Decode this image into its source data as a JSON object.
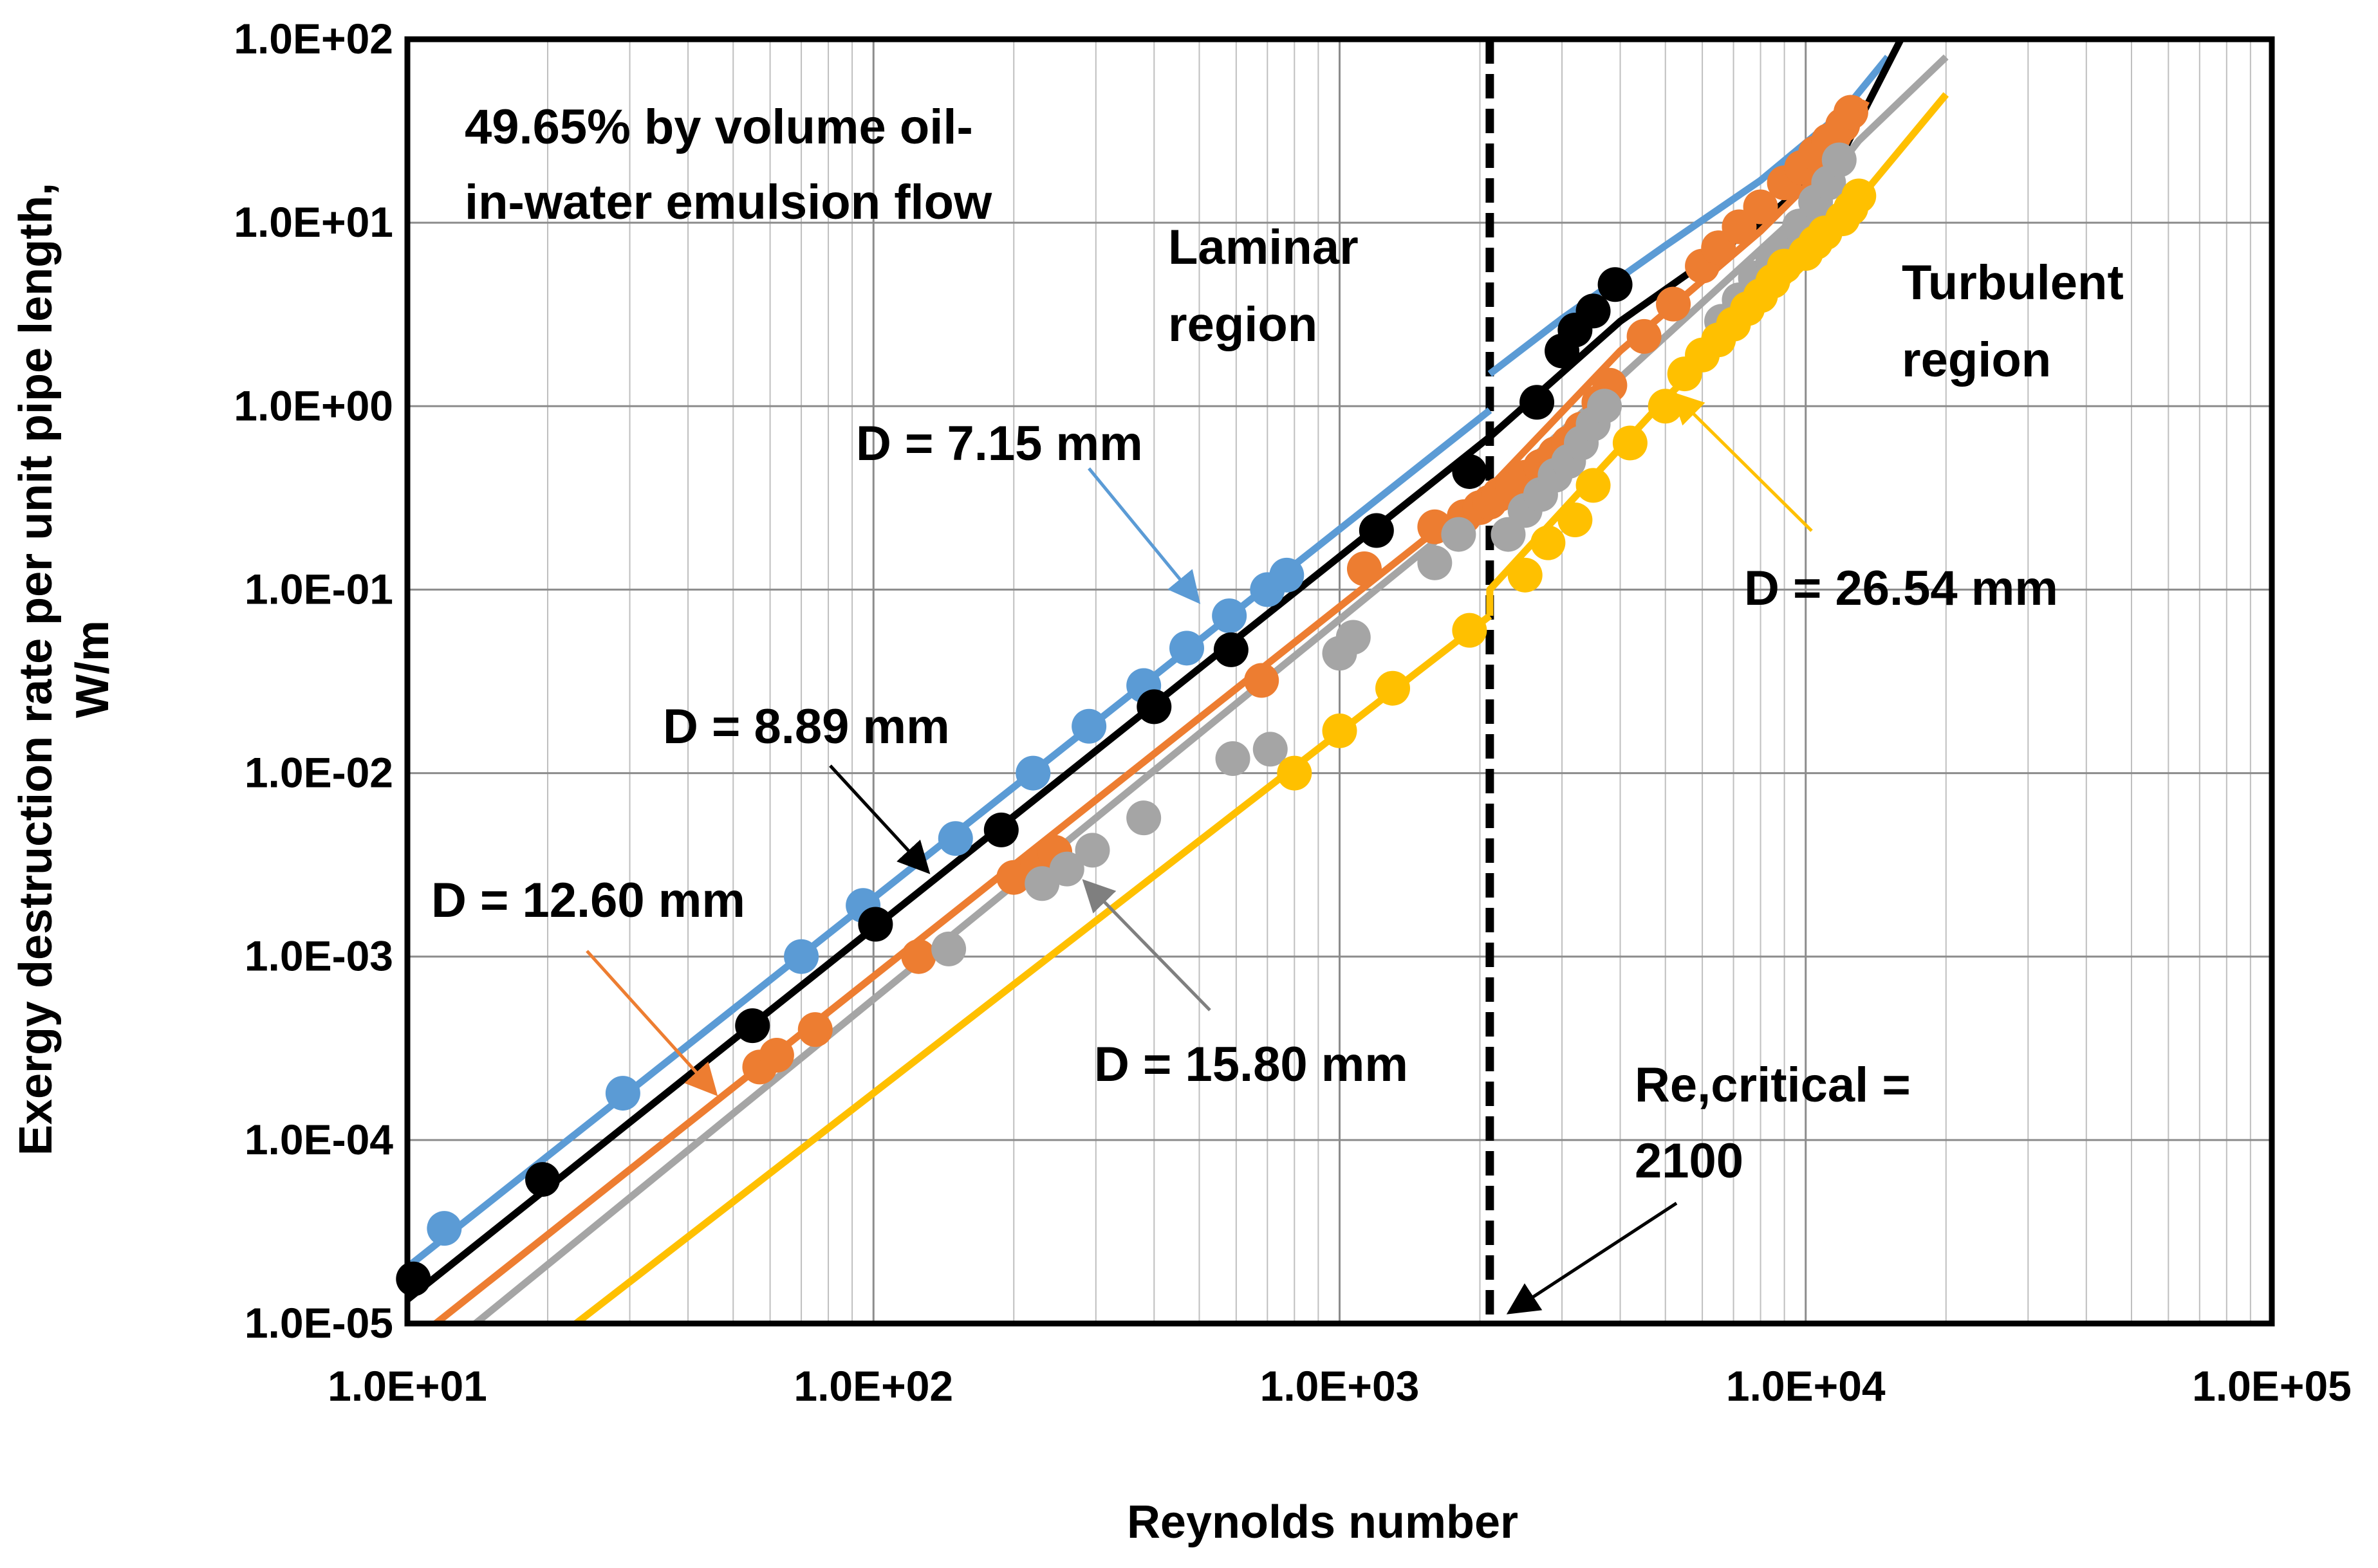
{
  "chart_data": {
    "type": "scatter",
    "xscale": "log",
    "yscale": "log",
    "xlabel": "Reynolds number",
    "ylabel": [
      "Exergy destruction rate per unit pipe length,",
      "W/m"
    ],
    "xlim": [
      10,
      100000
    ],
    "ylim": [
      1e-05,
      100
    ],
    "x_ticks": [
      "1.0E+01",
      "1.0E+02",
      "1.0E+03",
      "1.0E+04",
      "1.0E+05"
    ],
    "y_ticks": [
      "1.0E+02",
      "1.0E+01",
      "1.0E+00",
      "1.0E-01",
      "1.0E-02",
      "1.0E-03",
      "1.0E-04",
      "1.0E-05"
    ],
    "grid": true,
    "critical_reynolds": 2100,
    "annotations": {
      "title_line1": "49.65% by volume oil-",
      "title_line2": "in-water emulsion flow",
      "laminar_line1": "Laminar",
      "laminar_line2": "region",
      "turbulent_line1": "Turbulent",
      "turbulent_line2": "region",
      "critical_line1": "Re,critical =",
      "critical_line2": "2100"
    },
    "series": [
      {
        "name": "D = 7.15 mm",
        "color": "#5B9BD5",
        "line_laminar": [
          [
            10,
            2.03e-05
          ],
          [
            2100,
            0.95
          ]
        ],
        "line_turbulent": [
          [
            2100,
            1.5
          ],
          [
            3000,
            3.0
          ],
          [
            5000,
            7.5
          ],
          [
            8000,
            17
          ],
          [
            12000,
            40
          ],
          [
            15000,
            80
          ]
        ],
        "points_x": [
          12,
          29,
          70,
          95,
          150,
          220,
          290,
          380,
          470,
          580,
          700,
          770
        ],
        "points_y": [
          3.3e-05,
          0.00018,
          0.001,
          0.0019,
          0.0044,
          0.01,
          0.018,
          0.03,
          0.048,
          0.072,
          0.1,
          0.12
        ]
      },
      {
        "name": "D = 8.89 mm",
        "color": "#000000",
        "line_laminar": [
          [
            10,
            1.35e-05
          ],
          [
            2100,
            0.68
          ]
        ],
        "line_turbulent": [
          [
            2100,
            0.68
          ],
          [
            4000,
            2.9
          ],
          [
            8000,
            10
          ],
          [
            12000,
            24
          ],
          [
            16000,
            100
          ]
        ],
        "points_x": [
          10.3,
          19.5,
          55,
          101,
          188,
          400,
          585,
          1200,
          1900,
          2650,
          3000,
          3200,
          3500,
          3900
        ],
        "points_y": [
          1.75e-05,
          6.1e-05,
          0.00042,
          0.0015,
          0.0049,
          0.023,
          0.047,
          0.21,
          0.44,
          1.05,
          2.0,
          2.6,
          3.3,
          4.6
        ]
      },
      {
        "name": "D = 12.60 mm",
        "color": "#ED7D31",
        "line_laminar": [
          [
            11.5,
            1e-05
          ],
          [
            2100,
            0.36
          ]
        ],
        "line_turbulent": [
          [
            2100,
            0.36
          ],
          [
            4000,
            2.0
          ],
          [
            8000,
            9
          ],
          [
            12000,
            25
          ],
          [
            13500,
            46
          ]
        ],
        "points_x": [
          57,
          62,
          75,
          125,
          200,
          225,
          245,
          680,
          1130,
          1600,
          1850,
          2000,
          2100,
          2200,
          2350,
          2500,
          2700,
          2900,
          3100,
          3300,
          3600,
          3800,
          4500,
          5200,
          6000,
          6500,
          7200,
          8000,
          9000,
          9800,
          10500,
          11200,
          12000,
          12500
        ],
        "points_y": [
          0.00025,
          0.00029,
          0.0004,
          0.001,
          0.0027,
          0.0032,
          0.0037,
          0.032,
          0.13,
          0.22,
          0.25,
          0.28,
          0.3,
          0.33,
          0.37,
          0.41,
          0.47,
          0.55,
          0.63,
          0.75,
          1.05,
          1.3,
          2.4,
          3.6,
          5.8,
          7.3,
          9.5,
          12.2,
          16.5,
          20,
          24,
          28,
          34,
          40
        ]
      },
      {
        "name": "D = 15.80 mm",
        "color": "#A5A5A5",
        "line_laminar": [
          [
            14,
            1e-05
          ],
          [
            2100,
            0.32
          ]
        ],
        "line_turbulent": [
          [
            2100,
            0.32
          ],
          [
            5000,
            2.4
          ],
          [
            10000,
            12
          ],
          [
            13000,
            28
          ],
          [
            20000,
            80
          ]
        ],
        "points_x": [
          145,
          230,
          260,
          295,
          380,
          590,
          710,
          1000,
          1070,
          1600,
          1800,
          2300,
          2500,
          2700,
          2900,
          3100,
          3300,
          3500,
          3700,
          6600,
          7200,
          7800,
          8500,
          9100,
          9700,
          10500,
          11200,
          11800
        ],
        "points_y": [
          0.0011,
          0.0025,
          0.003,
          0.0038,
          0.0057,
          0.012,
          0.0135,
          0.045,
          0.055,
          0.14,
          0.2,
          0.2,
          0.27,
          0.33,
          0.42,
          0.5,
          0.63,
          0.8,
          1.0,
          2.9,
          3.8,
          5.0,
          6.2,
          7.5,
          9.6,
          13,
          16.5,
          22
        ]
      },
      {
        "name": "D = 26.54 mm",
        "color": "#FFC000",
        "line_laminar": [
          [
            23,
            1e-05
          ],
          [
            2100,
            0.072
          ]
        ],
        "line_turbulent": [
          [
            2100,
            0.072
          ],
          [
            2100,
            0.1
          ],
          [
            5000,
            1.1
          ],
          [
            10000,
            6
          ],
          [
            20000,
            50
          ]
        ],
        "points_x": [
          800,
          1000,
          1300,
          1900,
          2500,
          2800,
          3200,
          3500,
          4200,
          5000,
          5500,
          6000,
          6500,
          7000,
          7500,
          8000,
          8500,
          9000,
          10000,
          10500,
          11000,
          12000,
          12500,
          13000
        ],
        "points_y": [
          0.01,
          0.017,
          0.029,
          0.06,
          0.12,
          0.18,
          0.24,
          0.37,
          0.63,
          1.0,
          1.5,
          1.9,
          2.3,
          2.8,
          3.4,
          4.0,
          4.8,
          5.8,
          6.8,
          7.8,
          8.8,
          10.5,
          12,
          14
        ]
      }
    ]
  }
}
